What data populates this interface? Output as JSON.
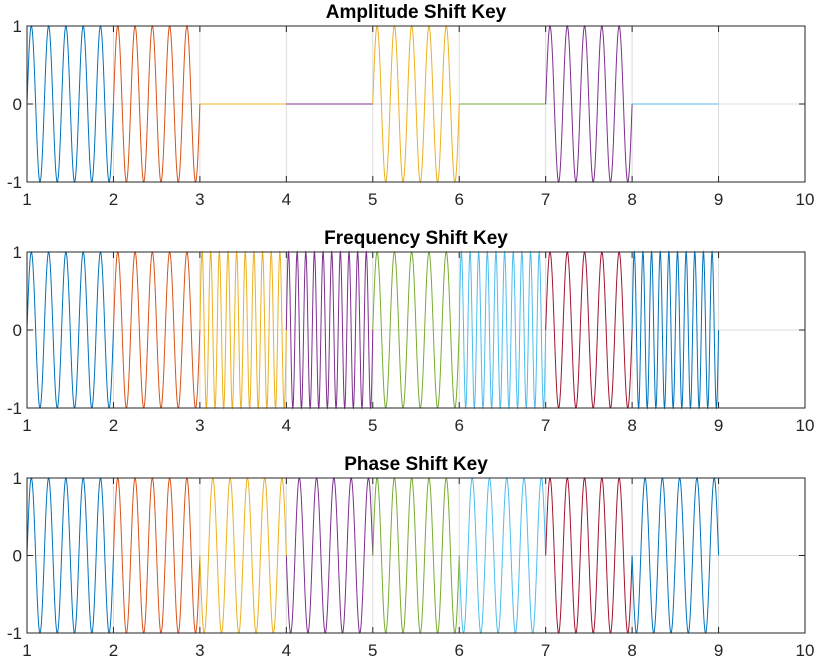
{
  "chart_data": [
    {
      "type": "line",
      "title": "Amplitude Shift Key",
      "xlim": [
        1,
        10
      ],
      "ylim": [
        -1,
        1
      ],
      "xticks": [
        "1",
        "2",
        "3",
        "4",
        "5",
        "6",
        "7",
        "8",
        "9",
        "10"
      ],
      "yticks": [
        "1",
        "0",
        "-1"
      ],
      "grid": true,
      "segments": [
        {
          "x_start": 1,
          "x_end": 2,
          "amplitude": 1,
          "cycles": 5,
          "phase_deg": 0,
          "color": "#0072BD"
        },
        {
          "x_start": 2,
          "x_end": 3,
          "amplitude": 1,
          "cycles": 5,
          "phase_deg": 0,
          "color": "#D95319"
        },
        {
          "x_start": 3,
          "x_end": 4,
          "amplitude": 0,
          "cycles": 5,
          "phase_deg": 0,
          "color": "#EDB120"
        },
        {
          "x_start": 4,
          "x_end": 5,
          "amplitude": 0,
          "cycles": 5,
          "phase_deg": 0,
          "color": "#7E2F8E"
        },
        {
          "x_start": 5,
          "x_end": 6,
          "amplitude": 1,
          "cycles": 5,
          "phase_deg": 0,
          "color": "#EDB120"
        },
        {
          "x_start": 6,
          "x_end": 7,
          "amplitude": 0,
          "cycles": 5,
          "phase_deg": 0,
          "color": "#77AC30"
        },
        {
          "x_start": 7,
          "x_end": 8,
          "amplitude": 1,
          "cycles": 5,
          "phase_deg": 0,
          "color": "#7E2F8E"
        },
        {
          "x_start": 8,
          "x_end": 9,
          "amplitude": 0,
          "cycles": 5,
          "phase_deg": 0,
          "color": "#4DBEEE"
        }
      ]
    },
    {
      "type": "line",
      "title": "Frequency Shift Key",
      "xlim": [
        1,
        10
      ],
      "ylim": [
        -1,
        1
      ],
      "xticks": [
        "1",
        "2",
        "3",
        "4",
        "5",
        "6",
        "7",
        "8",
        "9",
        "10"
      ],
      "yticks": [
        "1",
        "0",
        "-1"
      ],
      "grid": true,
      "segments": [
        {
          "x_start": 1,
          "x_end": 2,
          "amplitude": 1,
          "cycles": 5,
          "phase_deg": 0,
          "color": "#0072BD"
        },
        {
          "x_start": 2,
          "x_end": 3,
          "amplitude": 1,
          "cycles": 5,
          "phase_deg": 0,
          "color": "#D95319"
        },
        {
          "x_start": 3,
          "x_end": 4,
          "amplitude": 1,
          "cycles": 10,
          "phase_deg": 0,
          "color": "#EDB120"
        },
        {
          "x_start": 4,
          "x_end": 5,
          "amplitude": 1,
          "cycles": 10,
          "phase_deg": 0,
          "color": "#7E2F8E"
        },
        {
          "x_start": 5,
          "x_end": 6,
          "amplitude": 1,
          "cycles": 5,
          "phase_deg": 0,
          "color": "#77AC30"
        },
        {
          "x_start": 6,
          "x_end": 7,
          "amplitude": 1,
          "cycles": 10,
          "phase_deg": 0,
          "color": "#4DBEEE"
        },
        {
          "x_start": 7,
          "x_end": 8,
          "amplitude": 1,
          "cycles": 5,
          "phase_deg": 0,
          "color": "#A2142F"
        },
        {
          "x_start": 8,
          "x_end": 9,
          "amplitude": 1,
          "cycles": 10,
          "phase_deg": 0,
          "color": "#0072BD"
        }
      ]
    },
    {
      "type": "line",
      "title": "Phase Shift Key",
      "xlim": [
        1,
        10
      ],
      "ylim": [
        -1,
        1
      ],
      "xticks": [
        "1",
        "2",
        "3",
        "4",
        "5",
        "6",
        "7",
        "8",
        "9",
        "10"
      ],
      "yticks": [
        "1",
        "0",
        "-1"
      ],
      "grid": true,
      "segments": [
        {
          "x_start": 1,
          "x_end": 2,
          "amplitude": 1,
          "cycles": 5,
          "phase_deg": 0,
          "color": "#0072BD"
        },
        {
          "x_start": 2,
          "x_end": 3,
          "amplitude": 1,
          "cycles": 5,
          "phase_deg": 0,
          "color": "#D95319"
        },
        {
          "x_start": 3,
          "x_end": 4,
          "amplitude": 1,
          "cycles": 5,
          "phase_deg": 180,
          "color": "#EDB120"
        },
        {
          "x_start": 4,
          "x_end": 5,
          "amplitude": 1,
          "cycles": 5,
          "phase_deg": 180,
          "color": "#7E2F8E"
        },
        {
          "x_start": 5,
          "x_end": 6,
          "amplitude": 1,
          "cycles": 5,
          "phase_deg": 0,
          "color": "#77AC30"
        },
        {
          "x_start": 6,
          "x_end": 7,
          "amplitude": 1,
          "cycles": 5,
          "phase_deg": 180,
          "color": "#4DBEEE"
        },
        {
          "x_start": 7,
          "x_end": 8,
          "amplitude": 1,
          "cycles": 5,
          "phase_deg": 0,
          "color": "#A2142F"
        },
        {
          "x_start": 8,
          "x_end": 9,
          "amplitude": 1,
          "cycles": 5,
          "phase_deg": 180,
          "color": "#0072BD"
        }
      ]
    }
  ]
}
